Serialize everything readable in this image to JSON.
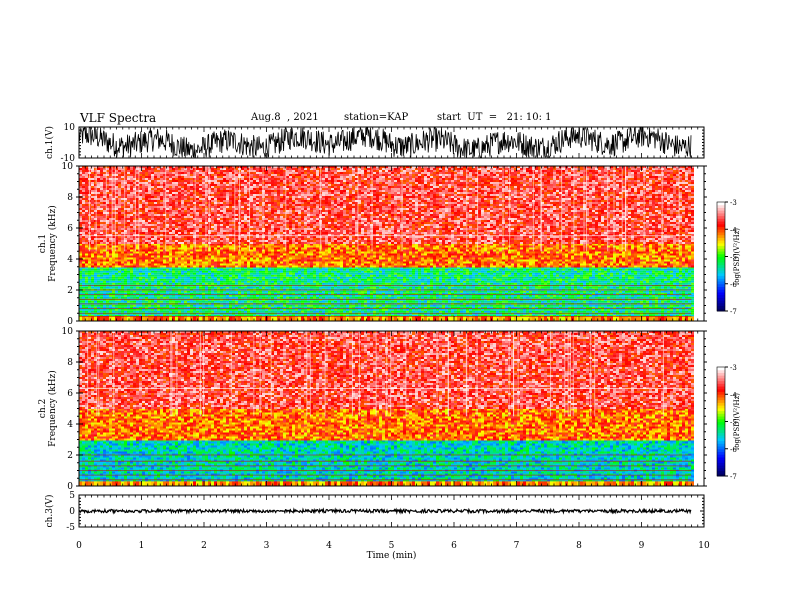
{
  "header": {
    "title": "VLF Spectra",
    "date": "Aug.8  , 2021",
    "station": "station=KAP",
    "start": "start  UT  =   21: 10: 1"
  },
  "chart_data": [
    {
      "type": "line",
      "panel": "ch1_waveform",
      "ylabel": "ch.1(V)",
      "ylim": [
        -10,
        10
      ],
      "yticks": [
        "10",
        "-10"
      ],
      "xlim": [
        0,
        10
      ],
      "xlabel": "",
      "grid": false
    },
    {
      "type": "heatmap",
      "panel": "ch1_spectrogram",
      "ylabel": "ch.1",
      "ylabel2": "Frequency  (kHz)",
      "ylim": [
        0,
        10
      ],
      "yticks": [
        "0",
        "2",
        "4",
        "6",
        "8",
        "10"
      ],
      "xlim": [
        0,
        9.8
      ],
      "colorbar": {
        "label": "log(PSD)(V²/Hz)",
        "range": [
          -7,
          -3
        ],
        "ticks": [
          "-3",
          "-4",
          "-5",
          "-6",
          "-7"
        ],
        "colors": [
          "#000060",
          "#0000ff",
          "#00c8ff",
          "#00ff00",
          "#ffff00",
          "#ff0000",
          "#ffffff"
        ]
      },
      "bands": [
        {
          "fmin": 0.3,
          "fmax": 3.5,
          "level": -5.3
        },
        {
          "fmin": 3.5,
          "fmax": 5.0,
          "level": -4.1
        },
        {
          "fmin": 5.0,
          "fmax": 10.0,
          "level": -3.6
        }
      ],
      "lines_khz": [
        0.3,
        0.5,
        0.8,
        1.1,
        1.4,
        1.7,
        2.0,
        2.3,
        5.5
      ]
    },
    {
      "type": "heatmap",
      "panel": "ch2_spectrogram",
      "ylabel": "ch.2",
      "ylabel2": "Frequency  (kHz)",
      "ylim": [
        0,
        10
      ],
      "yticks": [
        "0",
        "2",
        "4",
        "6",
        "8",
        "10"
      ],
      "xlim": [
        0,
        9.8
      ],
      "colorbar": {
        "label": "log(PSD)(V²/Hz)",
        "range": [
          -7,
          -3
        ],
        "ticks": [
          "-3",
          "-4",
          "-5",
          "-6",
          "-7"
        ],
        "colors": [
          "#000060",
          "#0000ff",
          "#00c8ff",
          "#00ff00",
          "#ffff00",
          "#ff0000",
          "#ffffff"
        ]
      },
      "bands": [
        {
          "fmin": 0.3,
          "fmax": 3.0,
          "level": -5.5
        },
        {
          "fmin": 3.0,
          "fmax": 5.0,
          "level": -4.1
        },
        {
          "fmin": 5.0,
          "fmax": 10.0,
          "level": -3.6
        }
      ],
      "lines_khz": [
        0.4,
        0.7,
        1.0,
        1.3,
        1.6,
        2.0,
        6.3
      ]
    },
    {
      "type": "line",
      "panel": "ch3_waveform",
      "ylabel": "ch.3(V)",
      "ylim": [
        -5,
        5
      ],
      "yticks": [
        "5",
        "0",
        "-5"
      ],
      "xlim": [
        0,
        10
      ],
      "xticks": [
        "0",
        "1",
        "2",
        "3",
        "4",
        "5",
        "6",
        "7",
        "8",
        "9",
        "10"
      ],
      "xlabel": "Time  (min)",
      "signal_level": 0,
      "amplitude": 0.5,
      "grid": false
    }
  ]
}
